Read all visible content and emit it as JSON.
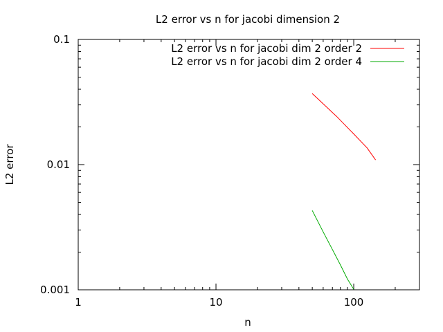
{
  "chart_data": {
    "type": "line",
    "title": "L2 error vs n for jacobi dimension 2",
    "xlabel": "n",
    "ylabel": "L2 error",
    "xscale": "log",
    "yscale": "log",
    "xlim": [
      1,
      300
    ],
    "ylim": [
      0.001,
      0.1
    ],
    "xticks": [
      1,
      10,
      100
    ],
    "xtick_labels": [
      "1",
      "10",
      "100"
    ],
    "yticks": [
      0.001,
      0.01,
      0.1
    ],
    "ytick_labels": [
      "0.001",
      "0.01",
      "0.1"
    ],
    "grid": false,
    "legend_position": "top-right",
    "series": [
      {
        "name": "L2 error vs n for jacobi dim 2 order 2",
        "color": "#ff0000",
        "x": [
          50,
          75,
          100,
          125,
          144
        ],
        "y": [
          0.037,
          0.0243,
          0.0176,
          0.0136,
          0.0109
        ]
      },
      {
        "name": "L2 error vs n for jacobi dim 2 order 4",
        "color": "#00aa00",
        "x": [
          50,
          60,
          70,
          80,
          90,
          100
        ],
        "y": [
          0.0043,
          0.0029,
          0.0021,
          0.00158,
          0.00122,
          0.00101
        ]
      }
    ]
  }
}
